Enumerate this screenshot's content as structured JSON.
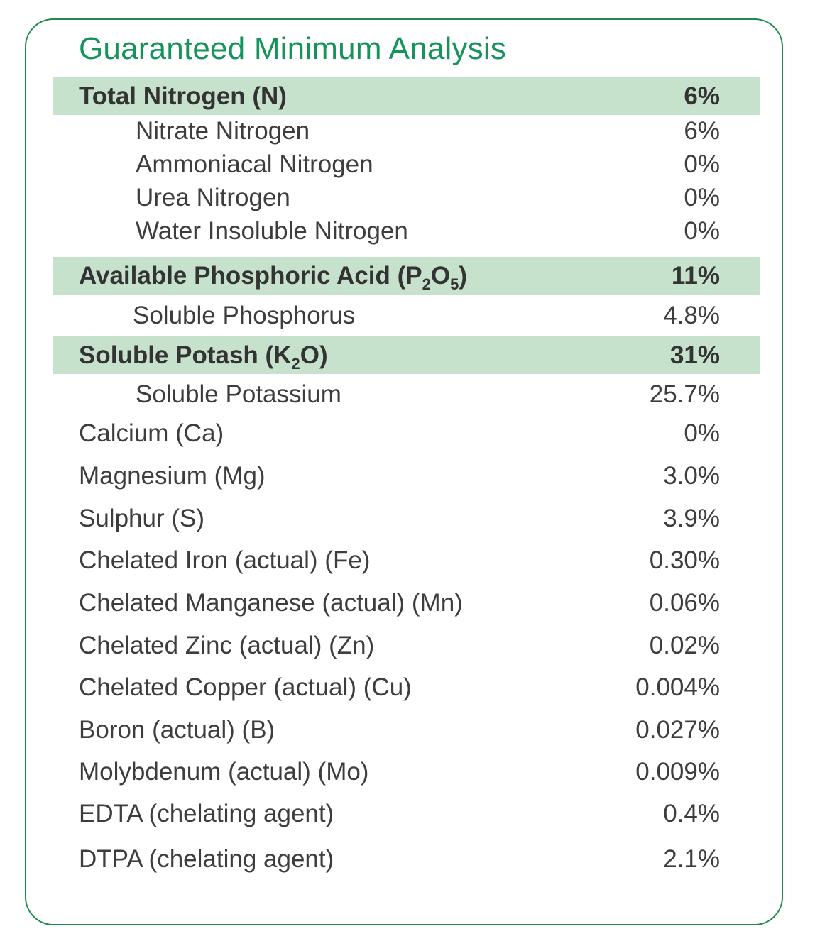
{
  "title": "Guaranteed Minimum Analysis",
  "rows": [
    {
      "label": "Total Nitrogen (N)",
      "value": "6%"
    },
    {
      "label": "Nitrate Nitrogen",
      "value": "6%"
    },
    {
      "label": "Ammoniacal Nitrogen",
      "value": "0%"
    },
    {
      "label": "Urea Nitrogen",
      "value": "0%"
    },
    {
      "label": "Water Insoluble Nitrogen",
      "value": "0%"
    },
    {
      "label_parts": {
        "pre": "Available Phosphoric Acid (P",
        "sub1": "2",
        "mid": "O",
        "sub2": "5",
        "post": ")"
      },
      "value": "11%"
    },
    {
      "label": "Soluble Phosphorus",
      "value": "4.8%"
    },
    {
      "label_parts": {
        "pre": "Soluble Potash (K",
        "sub1": "2",
        "post": "O)"
      },
      "value": "31%"
    },
    {
      "label": "Soluble Potassium",
      "value": "25.7%"
    },
    {
      "label": "Calcium (Ca)",
      "value": "0%"
    },
    {
      "label": "Magnesium (Mg)",
      "value": "3.0%"
    },
    {
      "label": "Sulphur (S)",
      "value": "3.9%"
    },
    {
      "label": "Chelated Iron (actual) (Fe)",
      "value": "0.30%"
    },
    {
      "label": "Chelated Manganese (actual) (Mn)",
      "value": "0.06%"
    },
    {
      "label": "Chelated Zinc (actual) (Zn)",
      "value": "0.02%"
    },
    {
      "label": "Chelated Copper (actual) (Cu)",
      "value": "0.004%"
    },
    {
      "label": "Boron (actual) (B)",
      "value": "0.027%"
    },
    {
      "label": "Molybdenum (actual) (Mo)",
      "value": "0.009%"
    },
    {
      "label": "EDTA (chelating agent)",
      "value": "0.4%"
    },
    {
      "label": "DTPA (chelating agent)",
      "value": "2.1%"
    }
  ],
  "colors": {
    "title": "#14935a",
    "border": "#1f8a4c",
    "header_band": "#c7e2cc",
    "text": "#3d3d3d"
  }
}
